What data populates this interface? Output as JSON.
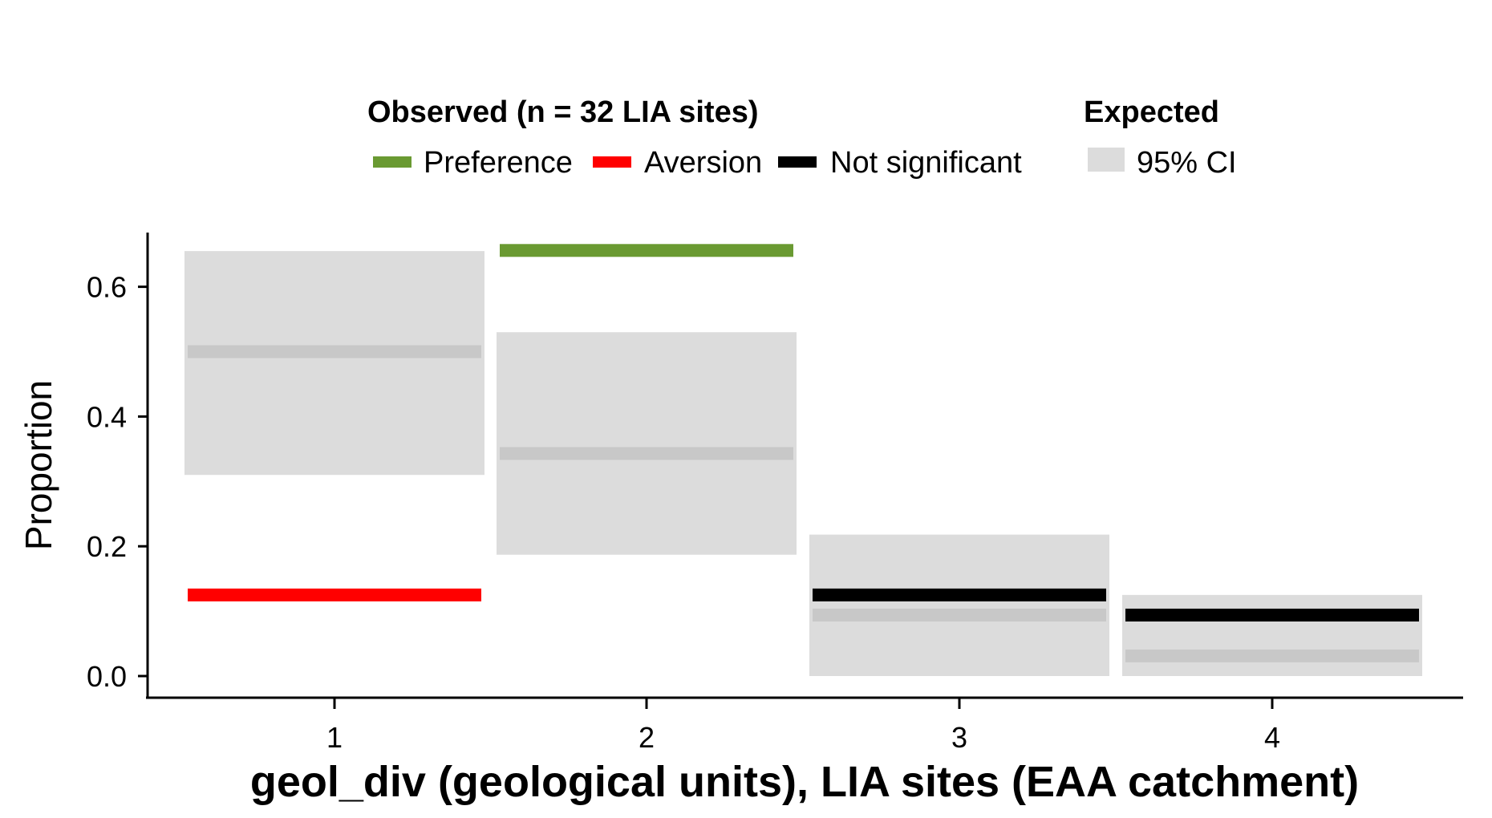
{
  "chart_data": {
    "type": "bar",
    "xlabel": "geol_div (geological units), LIA sites (EAA catchment)",
    "ylabel": "Proportion",
    "categories": [
      "1",
      "2",
      "3",
      "4"
    ],
    "yticks": [
      "0.0",
      "0.2",
      "0.4",
      "0.6"
    ],
    "ytick_values": [
      0.0,
      0.2,
      0.4,
      0.6
    ],
    "ylim": [
      -0.03,
      0.68
    ],
    "grid": false,
    "legend_position": "top",
    "legend": {
      "observed_title": "Observed (n = 32 LIA sites)",
      "observed_items": [
        {
          "label": "Preference",
          "color": "#6a9a32"
        },
        {
          "label": "Aversion",
          "color": "#ff0000"
        },
        {
          "label": "Not significant",
          "color": "#000000"
        }
      ],
      "expected_title": "Expected",
      "expected_items": [
        {
          "label": "95% CI",
          "color": "#dcdcdc"
        }
      ]
    },
    "expected_ci": [
      {
        "category": "1",
        "low": 0.31,
        "high": 0.655
      },
      {
        "category": "2",
        "low": 0.187,
        "high": 0.53
      },
      {
        "category": "3",
        "low": 0.0,
        "high": 0.218
      },
      {
        "category": "4",
        "low": 0.0,
        "high": 0.125
      }
    ],
    "expected_mean": [
      {
        "category": "1",
        "value": 0.5
      },
      {
        "category": "2",
        "value": 0.343
      },
      {
        "category": "3",
        "value": 0.094
      },
      {
        "category": "4",
        "value": 0.031
      }
    ],
    "observed": [
      {
        "category": "1",
        "value": 0.125,
        "status": "Aversion"
      },
      {
        "category": "2",
        "value": 0.656,
        "status": "Preference"
      },
      {
        "category": "3",
        "value": 0.125,
        "status": "Not significant"
      },
      {
        "category": "4",
        "value": 0.094,
        "status": "Not significant"
      }
    ],
    "colors": {
      "ci_fill": "#dcdcdc",
      "mean_line": "#c8c8c8",
      "preference": "#6a9a32",
      "aversion": "#ff0000",
      "not_significant": "#000000",
      "axis": "#000000"
    }
  }
}
